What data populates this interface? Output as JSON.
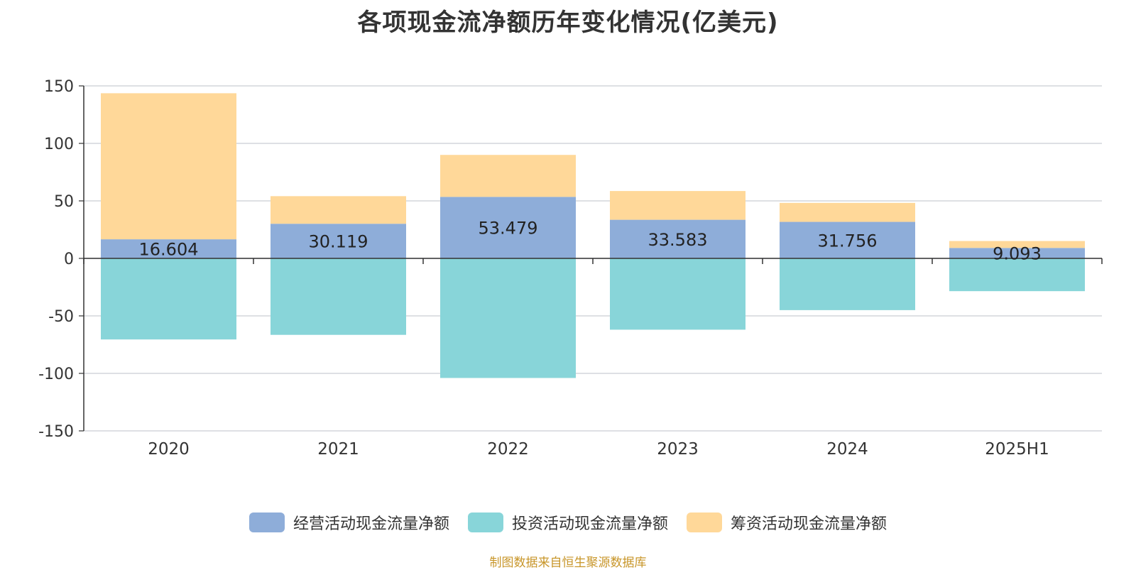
{
  "title": "各项现金流净额历年变化情况(亿美元)",
  "source": "制图数据来自恒生聚源数据库",
  "chart_data": {
    "type": "bar",
    "stacked": true,
    "categories": [
      "2020",
      "2021",
      "2022",
      "2023",
      "2024",
      "2025H1"
    ],
    "series": [
      {
        "name": "经营活动现金流量净额",
        "color": "#8eadd9",
        "values": [
          16.604,
          30.119,
          53.479,
          33.583,
          31.756,
          9.093
        ],
        "labels": [
          "16.604",
          "30.119",
          "53.479",
          "33.583",
          "31.756",
          "9.093"
        ]
      },
      {
        "name": "投资活动现金流量净额",
        "color": "#88d5d9",
        "values": [
          -70.5,
          -66.5,
          -104.0,
          -62.0,
          -45.0,
          -28.5
        ]
      },
      {
        "name": "筹资活动现金流量净额",
        "color": "#ffd899",
        "values": [
          127.0,
          24.0,
          36.5,
          25.0,
          16.5,
          6.0
        ]
      }
    ],
    "y_ticks": [
      "150",
      "100",
      "50",
      "0",
      "-50",
      "-100",
      "-150"
    ],
    "ylim": [
      -150,
      150
    ],
    "grid": true,
    "legend_position": "bottom"
  }
}
